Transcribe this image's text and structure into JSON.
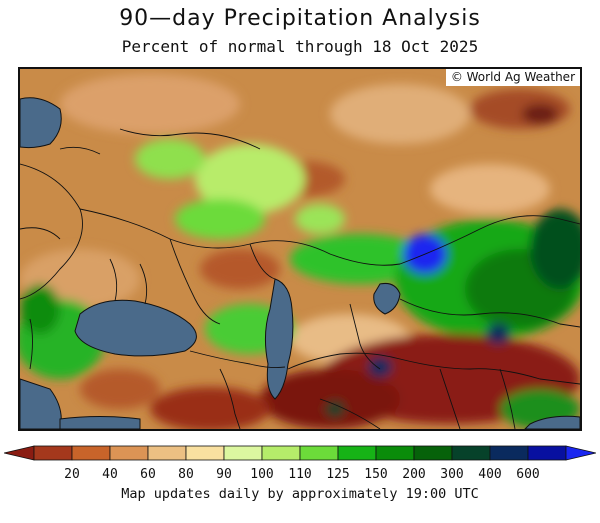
{
  "title": "90—day Precipitation Analysis",
  "subtitle": "Percent of normal through 18 Oct 2025",
  "copyright": "© World Ag Weather",
  "footer": "Map updates daily by approximately 19:00 UTC",
  "legend": {
    "colors": [
      "#8a1c12",
      "#a4381c",
      "#c8642a",
      "#dc9455",
      "#ecc083",
      "#f9e0a0",
      "#dcf7a0",
      "#b5ec6a",
      "#6cdb3a",
      "#16b316",
      "#0a8c0a",
      "#06620a",
      "#06422a",
      "#0a2a5e",
      "#0810a0",
      "#1a26f0"
    ],
    "labels": [
      "20",
      "40",
      "60",
      "80",
      "90",
      "100",
      "110",
      "125",
      "150",
      "200",
      "300",
      "400",
      "600"
    ]
  }
}
